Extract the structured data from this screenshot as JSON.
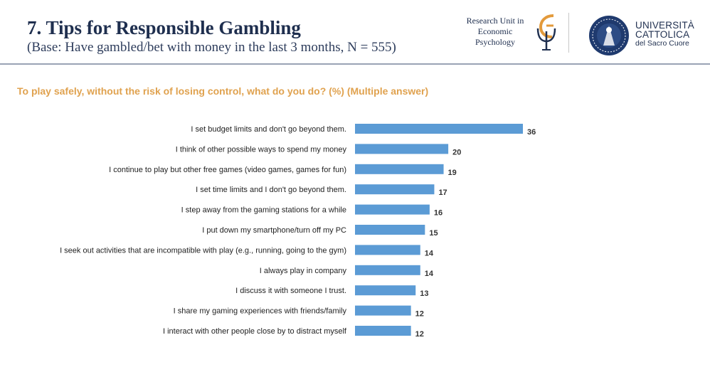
{
  "header": {
    "title": "7. Tips for Responsible Gambling",
    "subtitle": "(Base: Have gambled/bet with money in the last 3 months, N = 555)"
  },
  "logos": {
    "unit_lines": [
      "Research Unit in",
      "Economic",
      "Psychology"
    ],
    "university_lines": [
      "UNIVERSITÀ",
      "CATTOLICA",
      "del Sacro Cuore"
    ]
  },
  "question": "To play safely, without the risk of losing control, what do you do? (%) (Multiple answer)",
  "colors": {
    "bar": "#5b9bd5",
    "question": "#e0a24f",
    "title": "#1f2f4f"
  },
  "chart_data": {
    "type": "bar",
    "orientation": "horizontal",
    "categories": [
      "I set budget limits and don't go beyond them.",
      "I think of other possible ways to spend my money",
      "I continue to play but other free games (video games, games for fun)",
      "I set time limits and I don't go beyond them.",
      "I step away from the gaming stations for a while",
      "I put down my smartphone/turn off my PC",
      "I seek out activities that are incompatible with play (e.g., running, going to the gym)",
      "I always play in company",
      "I discuss it with someone I trust.",
      "I share my gaming experiences with friends/family",
      "I interact with other people close by  to distract myself"
    ],
    "values": [
      36,
      20,
      19,
      17,
      16,
      15,
      14,
      14,
      13,
      12,
      12
    ],
    "data_labels": true,
    "xlim": [
      0,
      36
    ]
  }
}
